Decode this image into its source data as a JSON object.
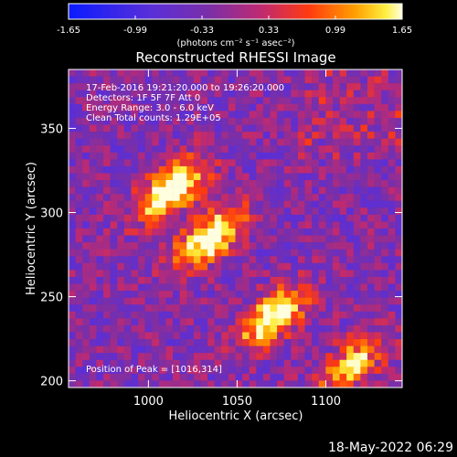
{
  "chart_data": {
    "type": "heatmap",
    "title": "Reconstructed RHESSI Image",
    "xlabel": "Heliocentric X (arcsec)",
    "ylabel": "Heliocentric Y (arcsec)",
    "xlim": [
      955,
      1143
    ],
    "ylim": [
      196,
      385
    ],
    "xticks": [
      1000,
      1050,
      1100
    ],
    "yticks": [
      200,
      250,
      300,
      350
    ],
    "colorbar": {
      "min": -1.65,
      "max": 1.65,
      "ticks": [
        "-1.65",
        "-0.99",
        "-0.33",
        "0.33",
        "0.99",
        "1.65"
      ],
      "ticks_values": [
        -1.65,
        -0.99,
        -0.33,
        0.33,
        0.99,
        1.65
      ],
      "label": "(photons cm⁻² s⁻¹ asec⁻²)",
      "colormap": "blue-purple-red-yellow-white"
    },
    "annotations": [
      "17-Feb-2016 19:21:20.000 to 19:26:20.000",
      "Detectors: 1F 5F 7F  Att 0",
      "Energy Range: 3.0 - 6.0 keV",
      "Clean     Total counts: 1.29E+05"
    ],
    "peak_text": "Position of Peak = [1016,314]",
    "sources": [
      {
        "x": 1013,
        "y": 314,
        "peak": 1.6
      },
      {
        "x": 1035,
        "y": 285,
        "peak": 1.5
      },
      {
        "x": 1070,
        "y": 238,
        "peak": 1.4
      },
      {
        "x": 1115,
        "y": 210,
        "peak": 1.0
      }
    ],
    "grid": false,
    "legend": "none"
  },
  "footer": {
    "timestamp": "18-May-2022 06:29"
  }
}
